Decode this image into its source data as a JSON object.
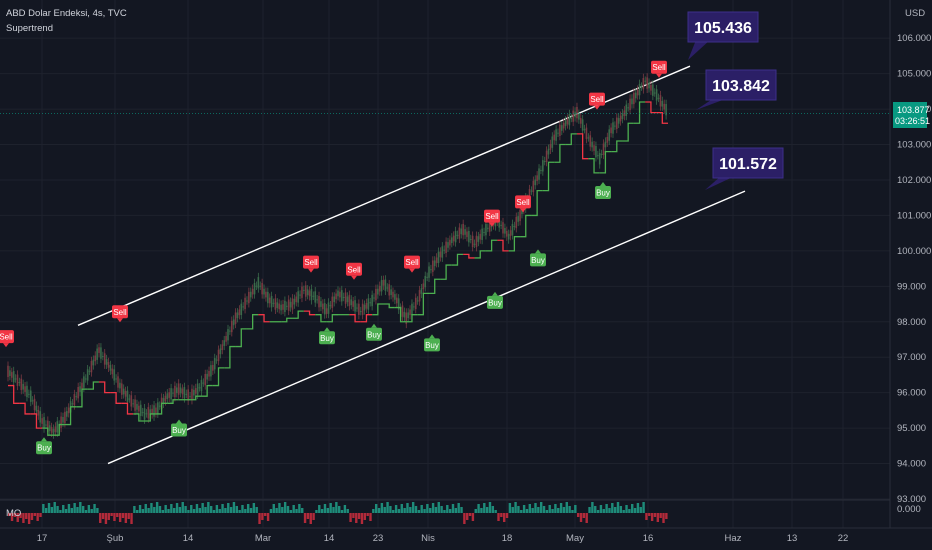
{
  "header": {
    "symbol_line": "ABD Dolar Endeksi, 4s, TVC",
    "indicator": "Supertrend",
    "currency": "USD",
    "sub_indicator": "MO",
    "sub_value": "0.000"
  },
  "last_price": {
    "value": "103.877",
    "countdown": "03:26:51"
  },
  "colors": {
    "up": "#4caf50",
    "down": "#f23645",
    "callout": "#2b1f66",
    "channel": "#ffffff",
    "bg": "#131722",
    "price_tag": "#089981"
  },
  "chart_data": {
    "type": "line",
    "x_ticks": [
      "17",
      "Şub",
      "14",
      "Mar",
      "14",
      "23",
      "Nis",
      "18",
      "May",
      "16",
      "Haz",
      "13",
      "22"
    ],
    "y_ticks": [
      "106.000",
      "105.000",
      "104.000",
      "103.000",
      "102.000",
      "101.000",
      "100.000",
      "99.000",
      "98.000",
      "97.000",
      "96.000",
      "95.000",
      "94.000",
      "93.000"
    ],
    "ylim": [
      93,
      106.4
    ],
    "callouts": [
      "105.436",
      "103.842",
      "101.572"
    ],
    "signals": [
      {
        "type": "sell",
        "label": "Sell",
        "value": 97.2
      },
      {
        "type": "buy",
        "label": "Buy",
        "value": 94.8
      },
      {
        "type": "sell",
        "label": "Sell",
        "value": 97.9
      },
      {
        "type": "buy",
        "label": "Buy",
        "value": 95.3
      },
      {
        "type": "sell",
        "label": "Sell",
        "value": 99.3
      },
      {
        "type": "buy",
        "label": "Buy",
        "value": 97.9
      },
      {
        "type": "sell",
        "label": "Sell",
        "value": 99.1
      },
      {
        "type": "buy",
        "label": "Buy",
        "value": 98.0
      },
      {
        "type": "sell",
        "label": "Sell",
        "value": 99.3
      },
      {
        "type": "buy",
        "label": "Buy",
        "value": 97.7
      },
      {
        "type": "sell",
        "label": "Sell",
        "value": 100.6
      },
      {
        "type": "buy",
        "label": "Buy",
        "value": 98.9
      },
      {
        "type": "sell",
        "label": "Sell",
        "value": 101.0
      },
      {
        "type": "buy",
        "label": "Buy",
        "value": 100.1
      },
      {
        "type": "sell",
        "label": "Sell",
        "value": 103.9
      },
      {
        "type": "buy",
        "label": "Buy",
        "value": 102.0
      },
      {
        "type": "sell",
        "label": "Sell",
        "value": 104.8
      }
    ],
    "price": [
      96.6,
      96.3,
      95.9,
      95.2,
      94.9,
      95.3,
      95.9,
      96.5,
      97.2,
      96.7,
      96.1,
      95.7,
      95.4,
      95.5,
      95.9,
      96.1,
      95.9,
      96.2,
      96.7,
      97.4,
      98.1,
      98.6,
      99.1,
      98.6,
      98.4,
      98.5,
      98.9,
      98.7,
      98.3,
      98.8,
      98.6,
      98.3,
      98.6,
      99.1,
      98.7,
      98.1,
      98.6,
      99.4,
      99.9,
      100.3,
      100.6,
      100.2,
      100.6,
      100.9,
      100.4,
      101.0,
      101.7,
      102.4,
      103.2,
      103.6,
      103.9,
      103.2,
      102.6,
      103.4,
      103.8,
      104.3,
      104.8,
      104.4,
      103.9
    ],
    "supertrend": [
      96.2,
      95.7,
      95.4,
      95.0,
      94.8,
      95.1,
      95.6,
      96.1,
      96.3,
      96.0,
      95.7,
      95.4,
      95.2,
      95.4,
      95.7,
      95.8,
      95.8,
      95.9,
      96.2,
      96.7,
      97.3,
      97.8,
      98.2,
      98.0,
      98.0,
      98.1,
      98.3,
      98.2,
      98.0,
      98.2,
      98.2,
      98.0,
      98.2,
      98.5,
      98.4,
      98.0,
      98.2,
      98.8,
      99.2,
      99.6,
      99.9,
      99.8,
      100.0,
      100.3,
      100.0,
      100.4,
      101.0,
      101.7,
      102.5,
      103.0,
      103.3,
      102.6,
      102.2,
      102.8,
      103.1,
      103.6,
      104.2,
      103.9,
      103.6
    ],
    "supertrend_direction": [
      "down",
      "down",
      "down",
      "up",
      "up",
      "up",
      "up",
      "up",
      "down",
      "down",
      "down",
      "up",
      "up",
      "up",
      "up",
      "up",
      "up",
      "up",
      "up",
      "up",
      "up",
      "up",
      "down",
      "up",
      "up",
      "up",
      "down",
      "up",
      "up",
      "up",
      "down",
      "down",
      "up",
      "up",
      "up",
      "up",
      "up",
      "up",
      "up",
      "up",
      "down",
      "up",
      "up",
      "down",
      "up",
      "up",
      "up",
      "up",
      "up",
      "up",
      "down",
      "up",
      "up",
      "up",
      "up",
      "up",
      "down",
      "down",
      "down"
    ]
  }
}
